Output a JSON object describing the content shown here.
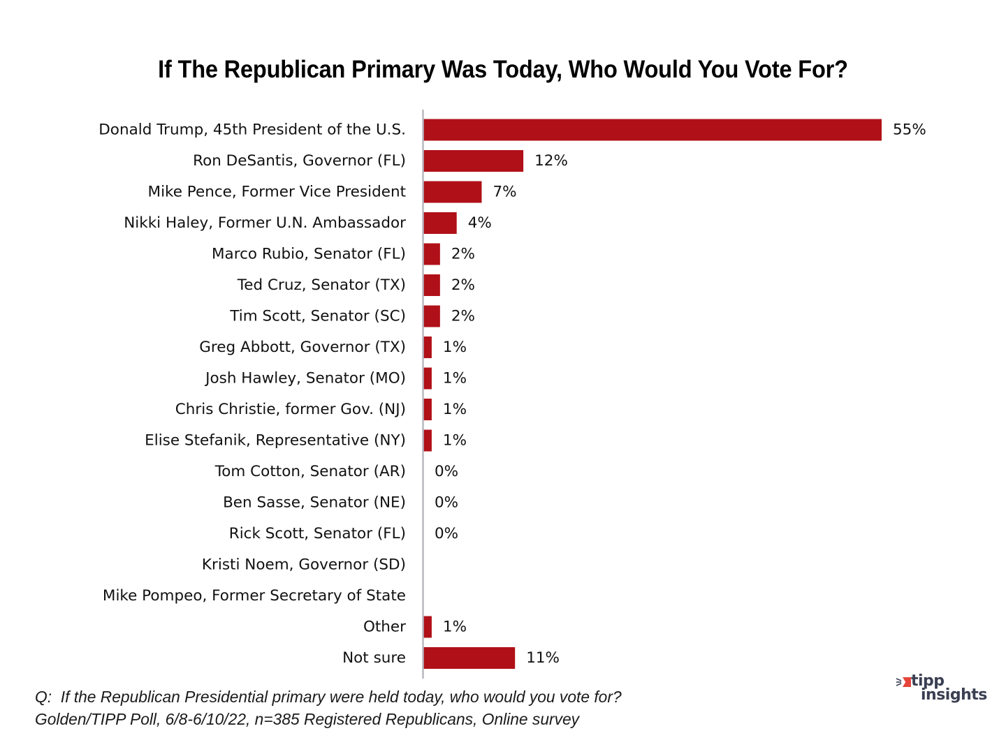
{
  "chart_data": {
    "type": "bar",
    "orientation": "horizontal",
    "title": "If The Republican Primary Was Today, Who Would You Vote For?",
    "xlabel": "",
    "ylabel": "",
    "xlim": [
      0,
      55
    ],
    "grid": false,
    "legend": null,
    "bar_color": "#b01018",
    "axis_color": "#b8b8c0",
    "categories": [
      "Donald Trump, 45th President of the U.S.",
      "Ron DeSantis, Governor (FL)",
      "Mike Pence, Former Vice President",
      "Nikki Haley, Former U.N. Ambassador",
      "Marco Rubio, Senator (FL)",
      "Ted Cruz, Senator (TX)",
      "Tim Scott, Senator (SC)",
      "Greg Abbott, Governor (TX)",
      "Josh Hawley, Senator (MO)",
      "Chris Christie, former Gov. (NJ)",
      "Elise Stefanik, Representative (NY)",
      "Tom Cotton, Senator (AR)",
      "Ben Sasse, Senator (NE)",
      "Rick Scott, Senator (FL)",
      "Kristi Noem, Governor (SD)",
      "Mike Pompeo,  Former Secretary of State",
      "Other",
      "Not sure"
    ],
    "values": [
      55,
      12,
      7,
      4,
      2,
      2,
      2,
      1,
      1,
      1,
      1,
      0,
      0,
      0,
      null,
      null,
      1,
      11
    ],
    "value_labels": [
      "55%",
      "12%",
      "7%",
      "4%",
      "2%",
      "2%",
      "2%",
      "1%",
      "1%",
      "1%",
      "1%",
      "0%",
      "0%",
      "0%",
      "",
      "",
      "1%",
      "11%"
    ]
  },
  "footnote": {
    "question": "Q:  If the Republican Presidential primary were held today, who would you vote for?",
    "source": "Golden/TIPP Poll, 6/8-6/10/22, n=385 Registered Republicans, Online survey"
  },
  "logo": {
    "line1": "tipp",
    "line2": "insights",
    "accent_color": "#e5453a",
    "text_color": "#3b3f52"
  }
}
